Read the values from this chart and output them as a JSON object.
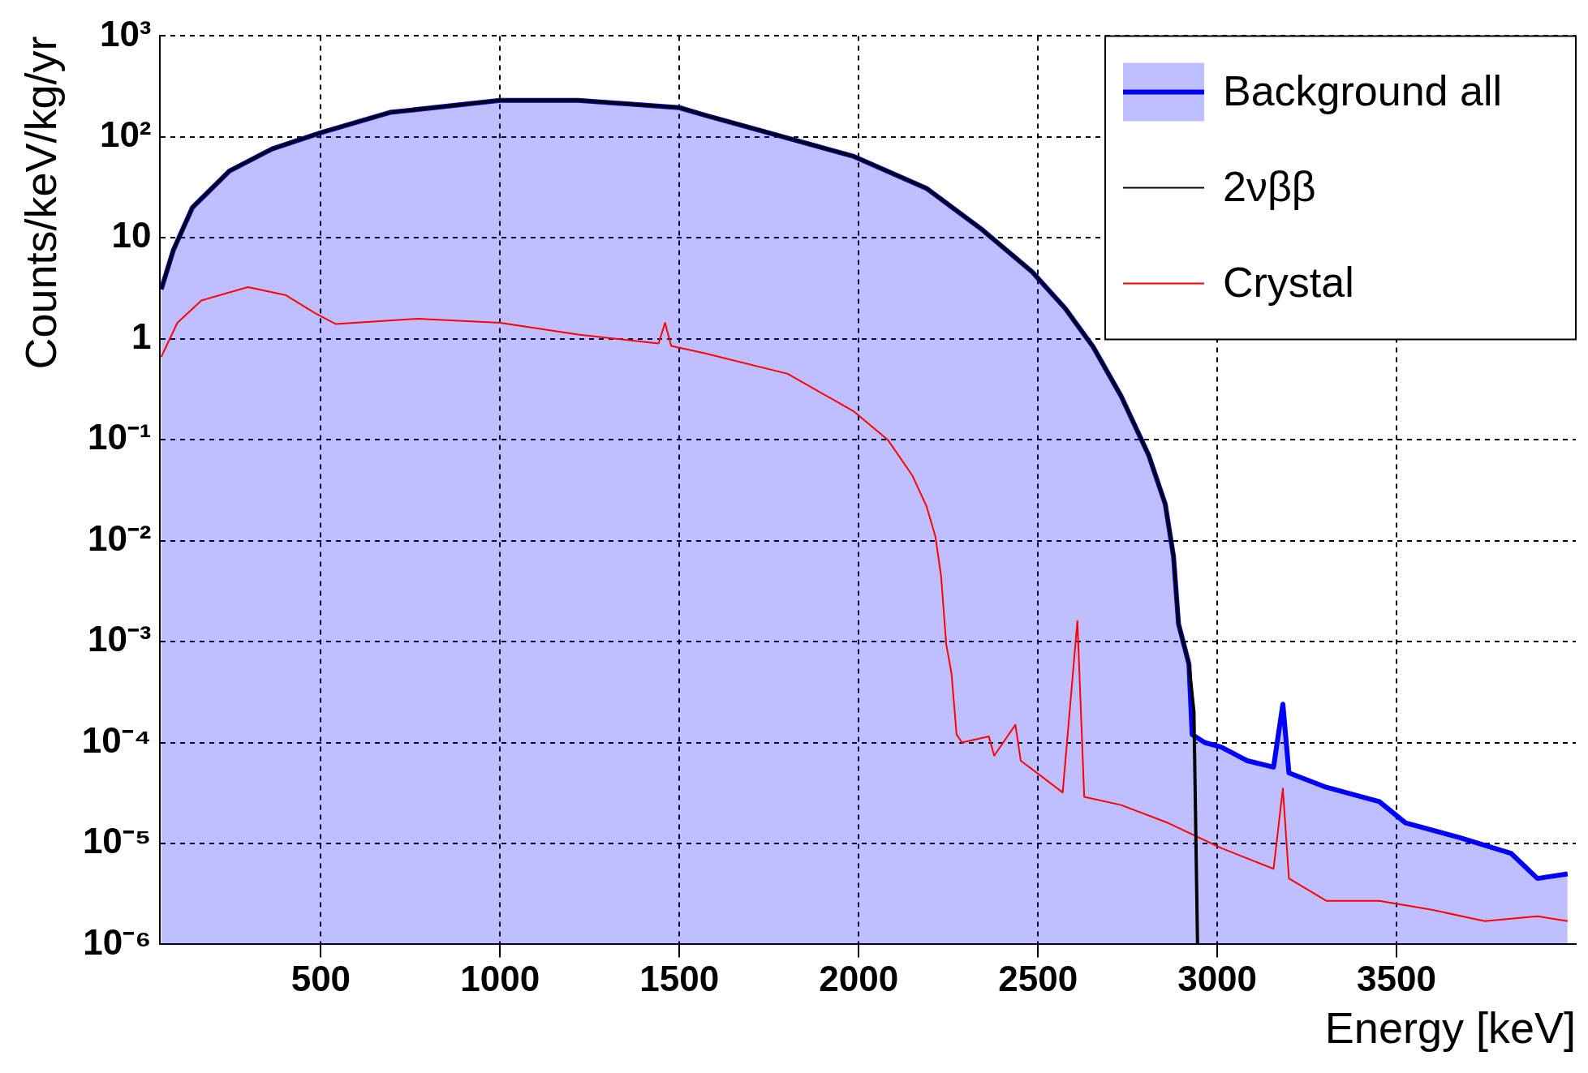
{
  "chart_data": {
    "type": "line",
    "xlabel": "Energy [keV]",
    "ylabel": "Counts/keV/kg/yr",
    "log": "y",
    "grid": true,
    "legend": "top right",
    "xlim": [
      50,
      4000
    ],
    "xticks": [
      500,
      1000,
      1500,
      2000,
      2500,
      3000,
      3500
    ],
    "ylim": [
      1e-06,
      1000
    ],
    "yticks": [
      {
        "value": 1e-06,
        "label": "10⁻⁶"
      },
      {
        "value": 1e-05,
        "label": "10⁻⁵"
      },
      {
        "value": 0.0001,
        "label": "10⁻⁴"
      },
      {
        "value": 0.001,
        "label": "10⁻³"
      },
      {
        "value": 0.01,
        "label": "10⁻²"
      },
      {
        "value": 0.1,
        "label": "10⁻¹"
      },
      1,
      10,
      {
        "value": 100,
        "label": "10²"
      },
      {
        "value": 1000,
        "label": "10³"
      }
    ],
    "series": [
      {
        "name": "Background all",
        "type": "area",
        "color": "#0000ff",
        "x": [
          55,
          89,
          142,
          245,
          364,
          500,
          693,
          1000,
          1218,
          1500,
          1570,
          1987,
          2189,
          2345,
          2484,
          2576,
          2654,
          2732,
          2809,
          2855,
          2878,
          2892,
          2921,
          2930,
          2965,
          3011,
          3084,
          3157,
          3183,
          3200,
          3304,
          3452,
          3525,
          3673,
          3819,
          3893,
          3977
        ],
        "values": [
          3.1,
          7.6,
          20,
          46,
          76,
          110,
          175,
          230,
          230,
          195,
          165,
          64,
          31,
          12,
          4.6,
          2.0,
          0.83,
          0.27,
          0.07,
          0.023,
          0.007,
          0.0015,
          0.0006,
          0.00012,
          0.0001,
          9e-05,
          6.6e-05,
          5.7e-05,
          0.00024,
          5e-05,
          3.6e-05,
          2.6e-05,
          1.6e-05,
          1.15e-05,
          8e-06,
          4.5e-06,
          5e-06
        ]
      },
      {
        "name": "2νββ",
        "type": "line",
        "color": "#000000",
        "x": [
          55,
          89,
          142,
          245,
          364,
          500,
          693,
          1000,
          1218,
          1500,
          1570,
          1987,
          2189,
          2345,
          2484,
          2576,
          2654,
          2732,
          2809,
          2855,
          2878,
          2892,
          2921,
          2935,
          2945
        ],
        "values": [
          3.1,
          7.6,
          20,
          46,
          76,
          110,
          175,
          230,
          230,
          195,
          165,
          64,
          31,
          12,
          4.6,
          2.0,
          0.83,
          0.27,
          0.07,
          0.023,
          0.007,
          0.0015,
          0.0006,
          0.0002,
          1e-06
        ]
      },
      {
        "name": "Crystal",
        "type": "line",
        "color": "#ff0000",
        "x": [
          55,
          100,
          167,
          297,
          403,
          483,
          542,
          771,
          1000,
          1218,
          1442,
          1460,
          1477,
          1570,
          1802,
          1987,
          2081,
          2150,
          2189,
          2214,
          2230,
          2244,
          2259,
          2273,
          2288,
          2363,
          2378,
          2437,
          2452,
          2569,
          2610,
          2629,
          2732,
          2862,
          3011,
          3157,
          3183,
          3200,
          3304,
          3452,
          3599,
          3746,
          3893,
          3977
        ],
        "values": [
          0.66,
          1.44,
          2.4,
          3.25,
          2.7,
          1.8,
          1.4,
          1.58,
          1.44,
          1.1,
          0.9,
          1.44,
          0.85,
          0.72,
          0.45,
          0.19,
          0.1,
          0.044,
          0.022,
          0.011,
          0.0044,
          0.00095,
          0.00048,
          0.00012,
          0.0001,
          0.000115,
          7.4e-05,
          0.00015,
          6.6e-05,
          3.2e-05,
          0.0016,
          2.9e-05,
          2.4e-05,
          1.6e-05,
          9e-06,
          5.6e-06,
          3.5e-05,
          4.5e-06,
          2.7e-06,
          2.7e-06,
          2.2e-06,
          1.7e-06,
          1.9e-06,
          1.7e-06
        ]
      }
    ]
  }
}
